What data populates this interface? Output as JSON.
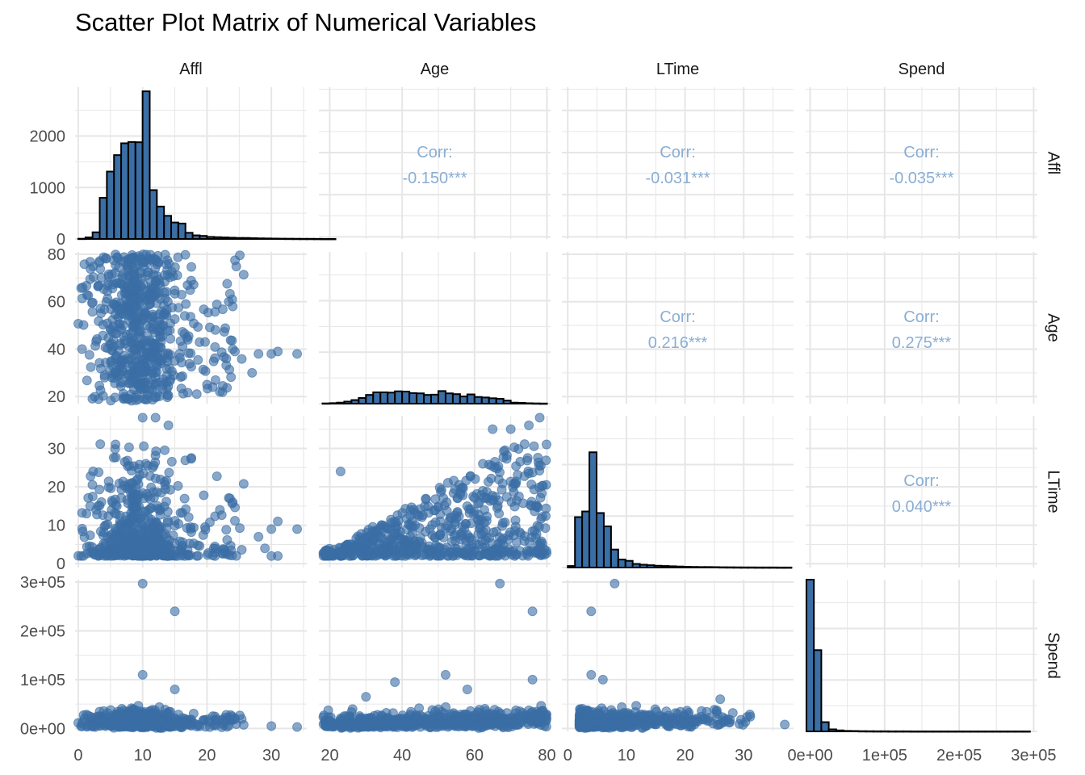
{
  "title": "Scatter Plot Matrix of Numerical Variables",
  "colors": {
    "point": "#3a6ea5",
    "bar_fill": "#3a6ea5",
    "bar_stroke": "#000000",
    "corr_text": "#8aaed4",
    "grid": "#e6e6e6"
  },
  "chart_data": {
    "type": "scatter",
    "variables": [
      "Affl",
      "Age",
      "LTime",
      "Spend"
    ],
    "grid": true,
    "axes": {
      "Affl": {
        "range": [
          -0.5,
          35.5
        ],
        "ticks": [
          0,
          10,
          20,
          30
        ],
        "tick_labels": [
          "0",
          "10",
          "20",
          "30"
        ]
      },
      "Age": {
        "range": [
          17,
          81
        ],
        "ticks": [
          20,
          40,
          60,
          80
        ],
        "tick_labels": [
          "20",
          "40",
          "60",
          "80"
        ]
      },
      "LTime": {
        "range": [
          -1,
          38.5
        ],
        "ticks": [
          0,
          10,
          20,
          30
        ],
        "tick_labels": [
          "0",
          "10",
          "20",
          "30"
        ]
      },
      "Spend": {
        "range": [
          -6000,
          305000
        ],
        "ticks": [
          0,
          100000,
          200000,
          300000
        ],
        "tick_labels": [
          "0e+00",
          "1e+05",
          "2e+05",
          "3e+05"
        ]
      }
    },
    "histogram_count_axis": {
      "range": [
        0,
        2950
      ],
      "ticks": [
        0,
        1000,
        2000
      ],
      "tick_labels": [
        "0",
        "1000",
        "2000"
      ]
    },
    "histograms": {
      "Affl": {
        "bin_width": 1.11,
        "start": 0,
        "counts": [
          5,
          30,
          130,
          800,
          1310,
          1630,
          1860,
          1885,
          1880,
          2870,
          950,
          630,
          450,
          320,
          300,
          120,
          70,
          60,
          40,
          35,
          30,
          25,
          20,
          20,
          15,
          12,
          10,
          8,
          6,
          5,
          4,
          3,
          3,
          2,
          1,
          1
        ]
      },
      "Age": {
        "bin_width": 2.0,
        "start": 18,
        "counts": [
          5,
          10,
          20,
          40,
          70,
          110,
          170,
          220,
          220,
          215,
          240,
          235,
          205,
          200,
          170,
          175,
          245,
          200,
          185,
          140,
          180,
          130,
          120,
          105,
          95,
          60,
          20,
          15,
          8,
          5,
          3
        ]
      },
      "LTime": {
        "bin_width": 1.23,
        "start": 0,
        "counts": [
          30,
          980,
          1090,
          2240,
          1060,
          800,
          350,
          155,
          130,
          70,
          55,
          45,
          35,
          30,
          25,
          20,
          15,
          12,
          10,
          10,
          8,
          6,
          5,
          4,
          3,
          3,
          2,
          2,
          2,
          1,
          1
        ]
      },
      "Spend": {
        "bin_width": 10000,
        "start": -5000,
        "counts": [
          2950,
          1580,
          180,
          40,
          20,
          10,
          8,
          5,
          4,
          3,
          3,
          2,
          2,
          2,
          1,
          1,
          1,
          1,
          1,
          1,
          1,
          1,
          1,
          1,
          1,
          1,
          1,
          1,
          1,
          1
        ]
      }
    },
    "correlations": [
      {
        "row": "Affl",
        "col": "Age",
        "label": "Corr:",
        "value": "-0.150***"
      },
      {
        "row": "Affl",
        "col": "LTime",
        "label": "Corr:",
        "value": "-0.031***"
      },
      {
        "row": "Affl",
        "col": "Spend",
        "label": "Corr:",
        "value": "-0.035***"
      },
      {
        "row": "Age",
        "col": "LTime",
        "label": "Corr:",
        "value": "0.216***"
      },
      {
        "row": "Age",
        "col": "Spend",
        "label": "Corr:",
        "value": "0.275***"
      },
      {
        "row": "LTime",
        "col": "Spend",
        "label": "Corr:",
        "value": "0.040***"
      }
    ],
    "scatter_outliers": {
      "Affl_Age": [
        [
          34,
          38
        ],
        [
          31,
          39
        ],
        [
          30,
          38
        ],
        [
          28,
          38
        ],
        [
          27,
          30
        ],
        [
          24,
          40
        ],
        [
          23,
          36
        ],
        [
          20,
          25
        ],
        [
          22,
          22
        ],
        [
          24,
          58
        ]
      ],
      "Affl_LTime": [
        [
          34,
          9
        ],
        [
          30,
          9
        ],
        [
          31,
          11
        ],
        [
          28,
          7
        ],
        [
          29,
          4
        ],
        [
          30,
          2
        ],
        [
          31,
          2
        ],
        [
          24,
          16
        ],
        [
          22,
          14
        ],
        [
          12,
          38
        ],
        [
          10,
          38
        ],
        [
          14,
          36
        ]
      ],
      "Affl_Spend": [
        [
          10,
          297000
        ],
        [
          15,
          240000
        ],
        [
          10,
          110000
        ],
        [
          15,
          80000
        ],
        [
          34,
          3000
        ],
        [
          30,
          5000
        ]
      ],
      "Age_LTime": [
        [
          78,
          38
        ],
        [
          75,
          36
        ],
        [
          23,
          24
        ],
        [
          70,
          35
        ],
        [
          65,
          35
        ]
      ],
      "Age_Spend": [
        [
          67,
          297000
        ],
        [
          76,
          240000
        ],
        [
          52,
          110000
        ],
        [
          38,
          95000
        ],
        [
          76,
          100000
        ],
        [
          58,
          80000
        ],
        [
          30,
          65000
        ]
      ],
      "LTime_Spend": [
        [
          8,
          297000
        ],
        [
          4,
          240000
        ],
        [
          4,
          110000
        ],
        [
          6,
          100000
        ],
        [
          26,
          60000
        ],
        [
          37,
          8000
        ]
      ]
    }
  }
}
